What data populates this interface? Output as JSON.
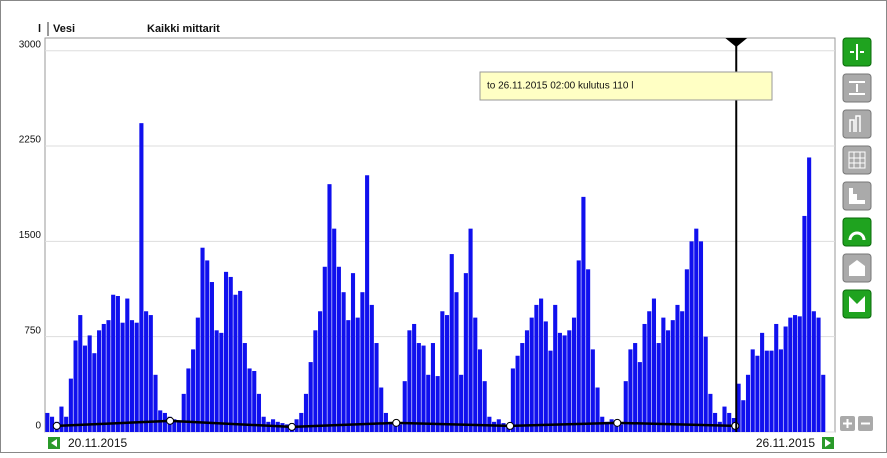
{
  "chart_data": {
    "type": "bar",
    "unit": "l",
    "title": "Vesi",
    "subtitle": "Kaikki mittarit",
    "xlim": [
      0,
      168
    ],
    "ylim": [
      0,
      3100
    ],
    "yticks": [
      0,
      750,
      1500,
      2250,
      3000
    ],
    "grid": true,
    "x_labels": [
      "20.11.2015",
      "26.11.2015"
    ],
    "cursor": {
      "x": 147,
      "label": "to 26.11.2015 02:00 kulutus 110 l"
    },
    "bars": {
      "color": "#1010ee",
      "values": [
        150,
        120,
        80,
        200,
        120,
        420,
        720,
        920,
        680,
        760,
        620,
        800,
        850,
        880,
        1080,
        1070,
        860,
        1050,
        880,
        860,
        2430,
        950,
        920,
        450,
        170,
        150,
        120,
        100,
        90,
        300,
        500,
        650,
        900,
        1450,
        1350,
        1180,
        800,
        780,
        1260,
        1220,
        1080,
        1110,
        700,
        500,
        480,
        300,
        120,
        80,
        100,
        80,
        70,
        60,
        70,
        100,
        150,
        300,
        550,
        800,
        950,
        1300,
        1950,
        1600,
        1300,
        1100,
        880,
        1250,
        900,
        1100,
        2020,
        1000,
        700,
        350,
        150,
        80,
        60,
        60,
        400,
        800,
        850,
        700,
        680,
        450,
        700,
        440,
        950,
        920,
        1400,
        1100,
        450,
        1250,
        1600,
        900,
        650,
        400,
        120,
        80,
        100,
        70,
        60,
        500,
        600,
        700,
        800,
        900,
        1000,
        1050,
        870,
        640,
        1000,
        780,
        760,
        800,
        900,
        1350,
        1850,
        1280,
        650,
        350,
        120,
        80,
        100,
        90,
        60,
        400,
        650,
        700,
        550,
        850,
        950,
        1050,
        700,
        900,
        800,
        880,
        1000,
        950,
        1280,
        1500,
        1600,
        1500,
        750,
        300,
        150,
        80,
        200,
        150,
        110,
        380,
        250,
        450,
        650,
        600,
        780,
        640,
        640,
        850,
        650,
        830,
        900,
        920,
        910,
        1700,
        2160,
        950,
        900,
        450
      ]
    },
    "line": {
      "color": "#000000",
      "x": [
        2.5,
        26.6,
        52.5,
        74.7,
        98.9,
        121.7,
        146.8
      ],
      "values": [
        48,
        88,
        40,
        72,
        48,
        72,
        48
      ]
    }
  }
}
